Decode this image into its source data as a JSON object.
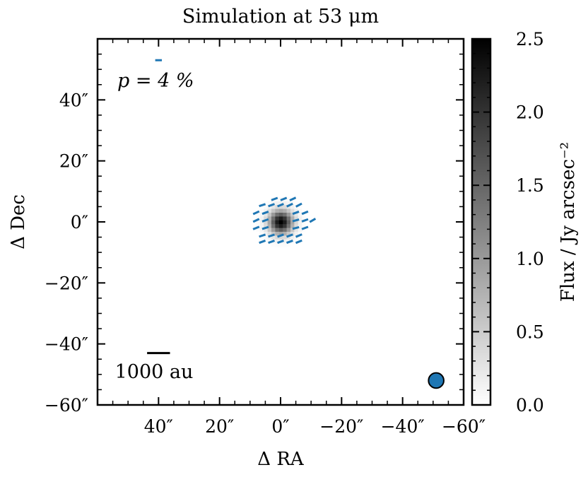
{
  "chart_data": {
    "type": "heatmap",
    "title": "Simulation at 53 μm",
    "xlabel": "Δ RA",
    "ylabel": "Δ Dec",
    "xlim": [
      60,
      -60
    ],
    "ylim": [
      -60,
      60
    ],
    "xticks": [
      40,
      20,
      0,
      -20,
      -40,
      -60
    ],
    "xtick_labels": [
      "40″",
      "20″",
      "0″",
      "−20″",
      "−40″",
      "−60″"
    ],
    "yticks": [
      40,
      20,
      0,
      -20,
      -40,
      -60
    ],
    "ytick_labels": [
      "40″",
      "20″",
      "0″",
      "−20″",
      "−40″",
      "−60″"
    ],
    "colorbar": {
      "label": "Flux / Jy arcsec⁻²",
      "range": [
        0.0,
        2.5
      ],
      "ticks": [
        0.0,
        0.5,
        1.0,
        1.5,
        2.0,
        2.5
      ],
      "tick_labels": [
        "0.0",
        "0.5",
        "1.0",
        "1.5",
        "2.0",
        "2.5"
      ],
      "colormap": "gray_r"
    },
    "source": {
      "center": [
        0,
        0
      ],
      "peak_flux": 2.5,
      "sigma_arcsec": 2.6
    },
    "vector_color": "#1f77b4",
    "vector_reference": {
      "label": "p = 4 %",
      "p_percent": 4,
      "position_arcsec": [
        40,
        53
      ]
    },
    "polarization_vectors": [
      {
        "x": 2,
        "y": 7.5,
        "angle": 20
      },
      {
        "x": -1,
        "y": 7.5,
        "angle": 22
      },
      {
        "x": -4,
        "y": 7.5,
        "angle": 25
      },
      {
        "x": 6,
        "y": 5.5,
        "angle": 18
      },
      {
        "x": 3,
        "y": 5.5,
        "angle": 20
      },
      {
        "x": 0,
        "y": 5.5,
        "angle": 22
      },
      {
        "x": -3,
        "y": 5.5,
        "angle": 25
      },
      {
        "x": -6,
        "y": 5.5,
        "angle": 28
      },
      {
        "x": 8,
        "y": 3,
        "angle": 25
      },
      {
        "x": 5,
        "y": 3,
        "angle": 20
      },
      {
        "x": -5,
        "y": 3,
        "angle": 20
      },
      {
        "x": -8,
        "y": 3,
        "angle": 22
      },
      {
        "x": 8,
        "y": 0.5,
        "angle": 25
      },
      {
        "x": 5,
        "y": 0.5,
        "angle": 20
      },
      {
        "x": -5,
        "y": 0.5,
        "angle": 15
      },
      {
        "x": -8,
        "y": 0.5,
        "angle": 20
      },
      {
        "x": -10.5,
        "y": 0.5,
        "angle": 30
      },
      {
        "x": 8,
        "y": -2,
        "angle": 22
      },
      {
        "x": 5,
        "y": -2,
        "angle": 18
      },
      {
        "x": -5,
        "y": -2,
        "angle": 15
      },
      {
        "x": -8,
        "y": -2,
        "angle": 20
      },
      {
        "x": 6,
        "y": -4.5,
        "angle": 18
      },
      {
        "x": 3,
        "y": -4.5,
        "angle": 18
      },
      {
        "x": 0,
        "y": -4.5,
        "angle": 20
      },
      {
        "x": -3,
        "y": -4.5,
        "angle": 20
      },
      {
        "x": -6,
        "y": -4.5,
        "angle": 22
      },
      {
        "x": 6,
        "y": -6.5,
        "angle": 20
      },
      {
        "x": 3,
        "y": -6.5,
        "angle": 20
      },
      {
        "x": 0,
        "y": -6.5,
        "angle": 20
      },
      {
        "x": -3,
        "y": -6.5,
        "angle": 20
      },
      {
        "x": -6,
        "y": -6.5,
        "angle": 22
      }
    ],
    "scalebar": {
      "label": "1000 au",
      "length_arcsec": 7.5,
      "position_arcsec": [
        40,
        -43
      ]
    },
    "beam": {
      "position_arcsec": [
        -51,
        -52
      ],
      "diameter_arcsec": 5,
      "color": "#1f77b4"
    }
  }
}
